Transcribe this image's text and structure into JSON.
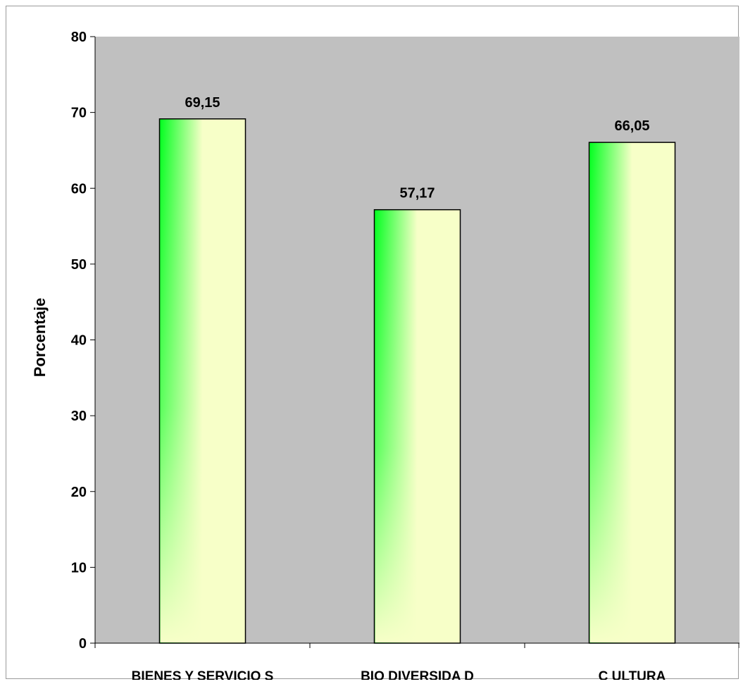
{
  "colors": {
    "plot_background": "#c0c0c0",
    "bar_gradient_dark": "#00ff1e",
    "bar_gradient_light": "#f7ffc8",
    "bar_outline": "#000000",
    "text": "#000000"
  },
  "chart_data": {
    "type": "bar",
    "title": "",
    "xlabel": "",
    "ylabel": "Porcentaje",
    "categories": [
      "BIENES Y SERVICIO S",
      "BIO DIVERSIDA D",
      "C ULTURA"
    ],
    "values": [
      69.15,
      57.17,
      66.05
    ],
    "value_labels": [
      "69,15",
      "57,17",
      "66,05"
    ],
    "ylim": [
      0,
      80
    ],
    "yticks": [
      0,
      10,
      20,
      30,
      40,
      50,
      60,
      70,
      80
    ],
    "grid": false,
    "legend": "none"
  }
}
